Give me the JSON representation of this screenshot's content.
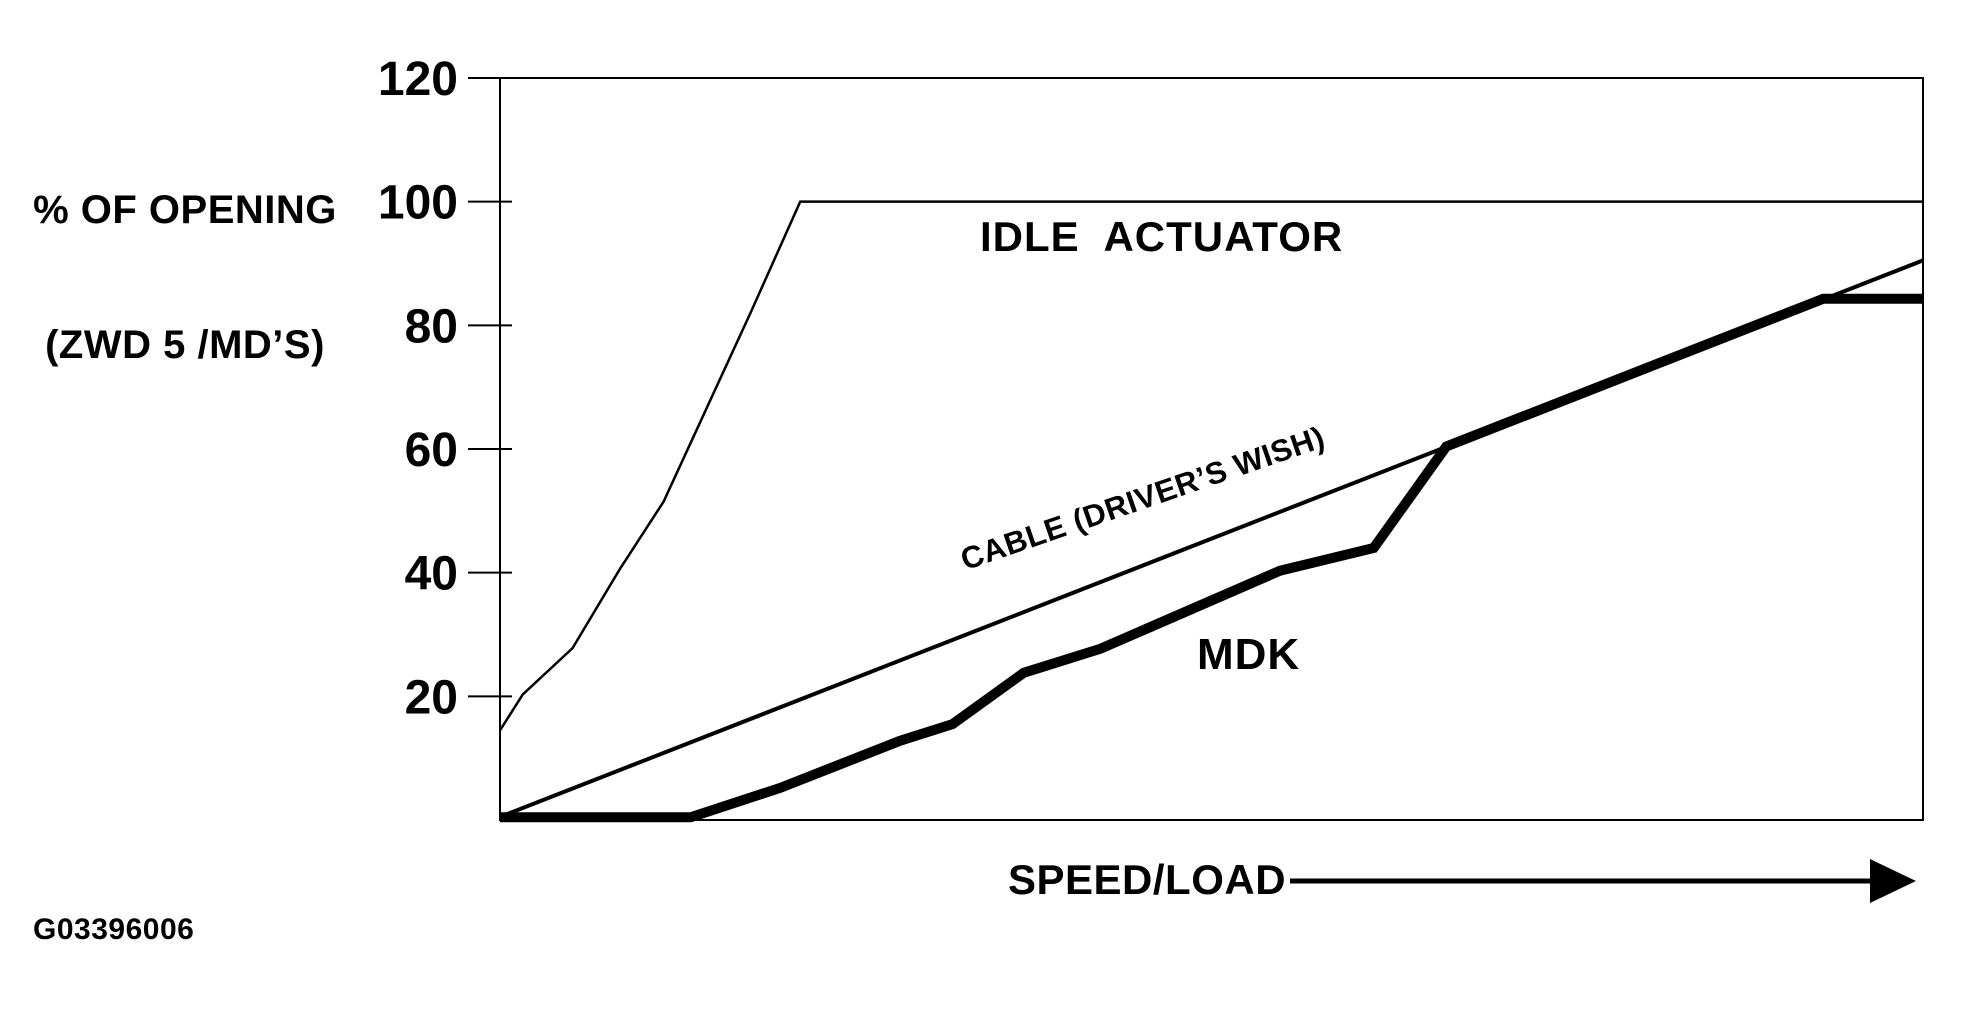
{
  "figure": {
    "code": "G03396006",
    "background_color": "#ffffff",
    "ink_color": "#000000"
  },
  "chart_data": {
    "type": "line",
    "title": "",
    "ylabel_lines": [
      "% OF OPENING",
      "(ZWD 5 /MD’S)"
    ],
    "xlabel": "SPEED/LOAD",
    "xlabel_arrow": "right-arrow",
    "xlim": [
      0,
      100
    ],
    "ylim": [
      0,
      120
    ],
    "yticks": [
      20,
      40,
      60,
      80,
      100,
      120
    ],
    "xticks": [],
    "grid": false,
    "legend_position": "inline-annotations",
    "series": [
      {
        "name": "idle-actuator",
        "label": "IDLE  ACTUATOR",
        "stroke_width": 2.5,
        "points": [
          [
            0,
            14.5
          ],
          [
            1.6,
            20.3
          ],
          [
            5.1,
            27.8
          ],
          [
            8.4,
            40.5
          ],
          [
            11.5,
            51.5
          ],
          [
            14.1,
            64.5
          ],
          [
            17.6,
            82
          ],
          [
            21.1,
            100
          ],
          [
            100,
            100
          ]
        ]
      },
      {
        "name": "cable-drivers-wish",
        "label": "CABLE (DRIVER’S WISH)",
        "stroke_width": 4,
        "points": [
          [
            0,
            0.5
          ],
          [
            100,
            90.5
          ]
        ]
      },
      {
        "name": "mdk",
        "label": "MDK",
        "stroke_width": 10,
        "points": [
          [
            0,
            0.45
          ],
          [
            13.4,
            0.45
          ],
          [
            19.7,
            5.2
          ],
          [
            28.1,
            12.8
          ],
          [
            31.8,
            15.5
          ],
          [
            36.8,
            23.8
          ],
          [
            42.2,
            27.7
          ],
          [
            54.8,
            40.3
          ],
          [
            61.4,
            44
          ],
          [
            66.5,
            60.4
          ],
          [
            93,
            84.3
          ],
          [
            100,
            84.3
          ]
        ]
      }
    ]
  }
}
